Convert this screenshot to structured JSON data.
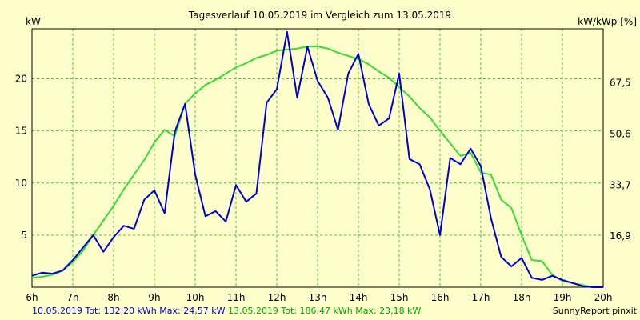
{
  "chart_data": {
    "type": "line",
    "title": "Tagesverlauf 10.05.2019 im Vergleich zum 13.05.2019",
    "ylabel_left": "kW",
    "ylabel_right": "kW/kWp [%]",
    "xlim": [
      6,
      20
    ],
    "ylim": [
      0,
      24.8
    ],
    "x_ticks": [
      6,
      7,
      8,
      9,
      10,
      11,
      12,
      13,
      14,
      15,
      16,
      17,
      18,
      19,
      20
    ],
    "x_tick_labels": [
      "6h",
      "7h",
      "8h",
      "9h",
      "10h",
      "11h",
      "12h",
      "13h",
      "14h",
      "15h",
      "16h",
      "17h",
      "18h",
      "19h",
      "20h"
    ],
    "y_ticks_left": [
      5,
      10,
      15,
      20
    ],
    "y_tick_labels_left": [
      "5",
      "10",
      "15",
      "20"
    ],
    "y_ticks_right": [
      4.9,
      9.8,
      14.7,
      19.6
    ],
    "y_tick_labels_right": [
      "16,9",
      "33,7",
      "50,6",
      "67,5"
    ],
    "grid": true,
    "series": [
      {
        "name": "10.05.2019",
        "color": "#0000cc",
        "points": [
          [
            6.0,
            1.1
          ],
          [
            6.25,
            1.4
          ],
          [
            6.5,
            1.3
          ],
          [
            6.75,
            1.6
          ],
          [
            7.0,
            2.6
          ],
          [
            7.25,
            3.8
          ],
          [
            7.5,
            5.0
          ],
          [
            7.75,
            3.4
          ],
          [
            8.0,
            4.8
          ],
          [
            8.25,
            5.9
          ],
          [
            8.5,
            5.6
          ],
          [
            8.75,
            8.4
          ],
          [
            9.0,
            9.3
          ],
          [
            9.25,
            7.1
          ],
          [
            9.5,
            14.9
          ],
          [
            9.75,
            17.6
          ],
          [
            10.0,
            10.8
          ],
          [
            10.25,
            6.8
          ],
          [
            10.5,
            7.3
          ],
          [
            10.75,
            6.3
          ],
          [
            11.0,
            9.8
          ],
          [
            11.25,
            8.2
          ],
          [
            11.5,
            9.0
          ],
          [
            11.75,
            17.7
          ],
          [
            12.0,
            19.0
          ],
          [
            12.25,
            24.5
          ],
          [
            12.5,
            18.2
          ],
          [
            12.75,
            23.1
          ],
          [
            13.0,
            19.8
          ],
          [
            13.25,
            18.2
          ],
          [
            13.5,
            15.1
          ],
          [
            13.75,
            20.5
          ],
          [
            14.0,
            22.4
          ],
          [
            14.25,
            17.6
          ],
          [
            14.5,
            15.5
          ],
          [
            14.75,
            16.2
          ],
          [
            15.0,
            20.5
          ],
          [
            15.25,
            12.3
          ],
          [
            15.5,
            11.8
          ],
          [
            15.75,
            9.4
          ],
          [
            16.0,
            5.0
          ],
          [
            16.25,
            12.4
          ],
          [
            16.5,
            11.8
          ],
          [
            16.75,
            13.3
          ],
          [
            17.0,
            11.6
          ],
          [
            17.25,
            6.6
          ],
          [
            17.5,
            2.9
          ],
          [
            17.75,
            2.0
          ],
          [
            18.0,
            2.8
          ],
          [
            18.25,
            0.9
          ],
          [
            18.5,
            0.7
          ],
          [
            18.75,
            1.1
          ],
          [
            19.0,
            0.7
          ],
          [
            19.25,
            0.4
          ],
          [
            19.5,
            0.1
          ],
          [
            19.75,
            0.0
          ],
          [
            20.0,
            0.0
          ]
        ]
      },
      {
        "name": "13.05.2019",
        "color": "#33dd33",
        "points": [
          [
            6.0,
            0.9
          ],
          [
            6.25,
            1.0
          ],
          [
            6.5,
            1.2
          ],
          [
            6.75,
            1.6
          ],
          [
            7.0,
            2.4
          ],
          [
            7.25,
            3.5
          ],
          [
            7.5,
            5.0
          ],
          [
            7.75,
            6.4
          ],
          [
            8.0,
            7.8
          ],
          [
            8.25,
            9.4
          ],
          [
            8.5,
            10.8
          ],
          [
            8.75,
            12.2
          ],
          [
            9.0,
            13.9
          ],
          [
            9.25,
            15.1
          ],
          [
            9.5,
            14.5
          ],
          [
            9.75,
            17.6
          ],
          [
            10.0,
            18.6
          ],
          [
            10.25,
            19.4
          ],
          [
            10.5,
            19.9
          ],
          [
            10.75,
            20.5
          ],
          [
            11.0,
            21.1
          ],
          [
            11.25,
            21.5
          ],
          [
            11.5,
            22.0
          ],
          [
            11.75,
            22.3
          ],
          [
            12.0,
            22.7
          ],
          [
            12.25,
            22.8
          ],
          [
            12.5,
            22.9
          ],
          [
            12.75,
            23.1
          ],
          [
            13.0,
            23.1
          ],
          [
            13.25,
            22.9
          ],
          [
            13.5,
            22.5
          ],
          [
            13.75,
            22.2
          ],
          [
            14.0,
            21.9
          ],
          [
            14.25,
            21.4
          ],
          [
            14.5,
            20.7
          ],
          [
            14.75,
            20.1
          ],
          [
            15.0,
            19.2
          ],
          [
            15.25,
            18.3
          ],
          [
            15.5,
            17.2
          ],
          [
            15.75,
            16.3
          ],
          [
            16.0,
            15.0
          ],
          [
            16.25,
            13.8
          ],
          [
            16.5,
            12.6
          ],
          [
            16.75,
            12.9
          ],
          [
            17.0,
            11.0
          ],
          [
            17.25,
            10.8
          ],
          [
            17.5,
            8.4
          ],
          [
            17.75,
            7.6
          ],
          [
            18.0,
            5.0
          ],
          [
            18.25,
            2.6
          ],
          [
            18.5,
            2.5
          ],
          [
            18.75,
            1.2
          ],
          [
            19.0,
            0.6
          ],
          [
            19.25,
            0.4
          ],
          [
            19.5,
            0.2
          ],
          [
            19.75,
            0.0
          ],
          [
            20.0,
            0.0
          ]
        ]
      }
    ],
    "footer_left_blue": "10.05.2019 Tot: 132,20 kWh Max: 24,57 kW",
    "footer_left_green": "13.05.2019 Tot: 186,47 kWh Max: 23,18 kW",
    "footer_right": "SunnyReport pinxit"
  }
}
